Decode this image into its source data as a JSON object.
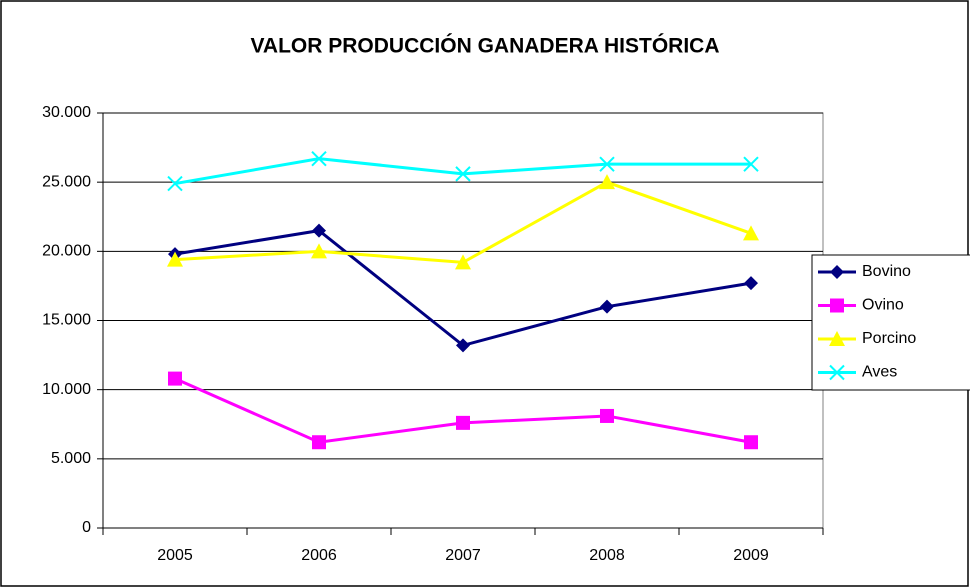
{
  "chart_data": {
    "type": "line",
    "title": "VALOR PRODUCCIÓN GANADERA HISTÓRICA",
    "categories": [
      "2005",
      "2006",
      "2007",
      "2008",
      "2009"
    ],
    "series": [
      {
        "name": "Bovino",
        "color": "#000080",
        "marker": "diamond",
        "values": [
          19800,
          21500,
          13200,
          16000,
          17700
        ]
      },
      {
        "name": "Ovino",
        "color": "#ff00ff",
        "marker": "square",
        "values": [
          10800,
          6200,
          7600,
          8100,
          6200
        ]
      },
      {
        "name": "Porcino",
        "color": "#ffff00",
        "marker": "triangle",
        "values": [
          19400,
          20000,
          19200,
          25000,
          21300
        ]
      },
      {
        "name": "Aves",
        "color": "#00ffff",
        "marker": "x",
        "values": [
          24900,
          26700,
          25600,
          26300,
          26300
        ]
      }
    ],
    "ylim": [
      0,
      30000
    ],
    "yticks": [
      0,
      {
        "value": 5000,
        "label": "5.000"
      },
      {
        "value": 10000,
        "label": "10.000"
      },
      {
        "value": 15000,
        "label": "15.000"
      },
      {
        "value": 20000,
        "label": "20.000"
      },
      {
        "value": 25000,
        "label": "25.000"
      },
      {
        "value": 30000,
        "label": "30.000"
      }
    ],
    "grid": true,
    "legend": "right"
  }
}
